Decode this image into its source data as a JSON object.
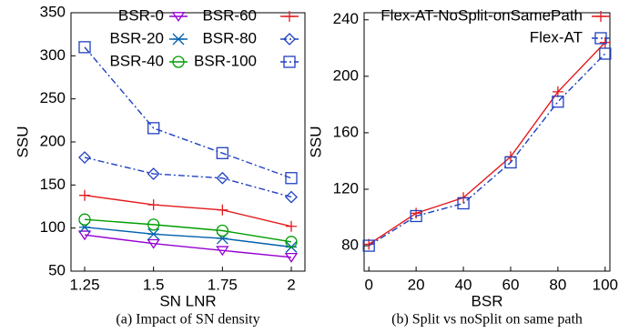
{
  "chart_data": [
    {
      "type": "line",
      "caption": "(a) Impact of SN density",
      "xlabel": "SN LNR",
      "ylabel": "SSU",
      "categories": [
        "1.25",
        "1.5",
        "1.75",
        "2"
      ],
      "ylim": [
        50,
        350
      ],
      "yticks": [
        50,
        100,
        150,
        200,
        250,
        300,
        350
      ],
      "series": [
        {
          "name": "BSR-0",
          "color": "#9400d3",
          "marker": "triangle-down",
          "linestyle": "solid",
          "values": [
            92,
            82,
            74,
            66
          ]
        },
        {
          "name": "BSR-20",
          "color": "#0060ad",
          "marker": "star",
          "linestyle": "solid",
          "values": [
            101,
            93,
            88,
            78
          ]
        },
        {
          "name": "BSR-40",
          "color": "#009e00",
          "marker": "circle",
          "linestyle": "solid",
          "values": [
            110,
            104,
            97,
            84
          ]
        },
        {
          "name": "BSR-60",
          "color": "#e41a1c",
          "marker": "plus",
          "linestyle": "solid",
          "values": [
            138,
            127,
            121,
            102
          ]
        },
        {
          "name": "BSR-80",
          "color": "#2040c0",
          "marker": "diamond",
          "linestyle": "dashdot",
          "values": [
            182,
            163,
            158,
            136
          ]
        },
        {
          "name": "BSR-100",
          "color": "#2040c0",
          "marker": "square",
          "linestyle": "dashdot",
          "values": [
            310,
            216,
            187,
            158
          ]
        }
      ]
    },
    {
      "type": "line",
      "caption": "(b) Split vs noSplit on same path",
      "xlabel": "BSR",
      "ylabel": "SSU",
      "x": [
        0,
        20,
        40,
        60,
        80,
        100
      ],
      "xlim": [
        -2,
        102
      ],
      "xticks": [
        0,
        20,
        40,
        60,
        80,
        100
      ],
      "ylim": [
        62,
        245
      ],
      "yticks": [
        80,
        120,
        160,
        200,
        240
      ],
      "series": [
        {
          "name": "Flex-AT-NoSplit-onSamePath",
          "color": "#e41a1c",
          "marker": "plus",
          "linestyle": "solid",
          "values": [
            81,
            103,
            114,
            143,
            189,
            224
          ]
        },
        {
          "name": "Flex-AT",
          "color": "#2040c0",
          "marker": "square",
          "linestyle": "dashdot",
          "values": [
            80,
            101,
            110,
            139,
            182,
            216
          ]
        }
      ]
    }
  ]
}
